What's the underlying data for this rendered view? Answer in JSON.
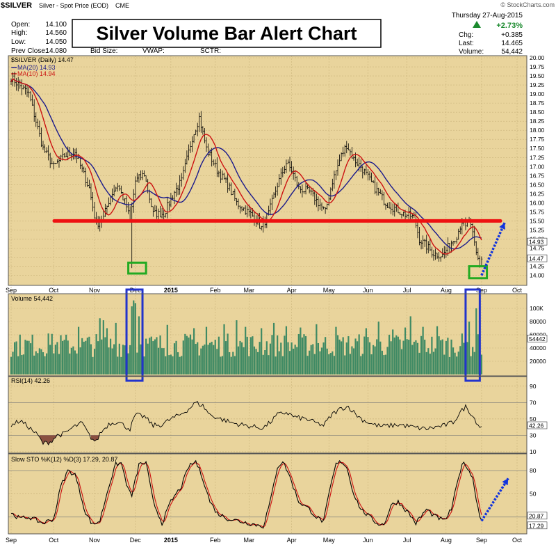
{
  "header": {
    "symbol": "$SILVER",
    "name": "Silver - Spot Price (EOD)",
    "exchange": "CME",
    "date": "Thursday  27-Aug-2015",
    "watermark": "© StockCharts.com",
    "open_label": "Open:",
    "open": "14.100",
    "high_label": "High:",
    "high": "14.560",
    "low_label": "Low:",
    "low": "14.050",
    "prev_label": "Prev Close:",
    "prev": "14.080",
    "bid_label": "Bid Size:",
    "vwap_label": "VWAP:",
    "sctr_label": "SCTR:",
    "change_pct": "+2.73%",
    "chg_label": "Chg:",
    "chg": "+0.385",
    "last_label": "Last:",
    "last": "14.465",
    "volume_label": "Volume:",
    "volume": "54,442"
  },
  "chart_data": [
    {
      "type": "ohlc",
      "title": "Silver Volume Bar Alert Chart",
      "legend": [
        "$SILVER (Daily) 14.47",
        "MA(20) 14.93",
        "MA(10) 14.94"
      ],
      "series_colors": {
        "price": "#000000",
        "ma20": "#1a1a8c",
        "ma10": "#cc1111"
      },
      "ylim": [
        13.8,
        20.0
      ],
      "yticks": [
        "20.00",
        "19.75",
        "19.50",
        "19.25",
        "19.00",
        "18.75",
        "18.50",
        "18.25",
        "18.00",
        "17.75",
        "17.50",
        "17.25",
        "17.00",
        "16.75",
        "16.50",
        "16.25",
        "16.00",
        "15.75",
        "15.50",
        "15.25",
        "15.00",
        "14.75",
        "14.50",
        "14.25",
        "14.00"
      ],
      "ytick_values": [
        20.0,
        19.75,
        19.5,
        19.25,
        19.0,
        18.75,
        18.5,
        18.25,
        18.0,
        17.75,
        17.5,
        17.25,
        17.0,
        16.75,
        16.5,
        16.25,
        16.0,
        15.75,
        15.5,
        15.25,
        15.0,
        14.75,
        14.5,
        14.25,
        14.0
      ],
      "x_months": [
        "Sep",
        "Oct",
        "Nov",
        "Dec",
        "2015",
        "Feb",
        "Mar",
        "Apr",
        "May",
        "Jun",
        "Jul",
        "Aug",
        "Sep",
        "Oct"
      ],
      "x_month_idx": [
        0,
        24,
        47,
        70,
        90,
        115,
        134,
        158,
        179,
        201,
        223,
        245,
        265,
        285
      ],
      "close_keypoints": [
        [
          0,
          19.45
        ],
        [
          10,
          19.0
        ],
        [
          18,
          17.5
        ],
        [
          24,
          17.0
        ],
        [
          30,
          17.3
        ],
        [
          36,
          17.4
        ],
        [
          44,
          16.4
        ],
        [
          48,
          15.4
        ],
        [
          52,
          15.6
        ],
        [
          56,
          16.2
        ],
        [
          60,
          16.5
        ],
        [
          65,
          15.9
        ],
        [
          67,
          15.5
        ],
        [
          70,
          16.6
        ],
        [
          75,
          16.8
        ],
        [
          80,
          15.7
        ],
        [
          86,
          15.7
        ],
        [
          92,
          16.3
        ],
        [
          96,
          16.6
        ],
        [
          102,
          17.8
        ],
        [
          106,
          18.35
        ],
        [
          110,
          17.5
        ],
        [
          116,
          16.9
        ],
        [
          122,
          16.5
        ],
        [
          127,
          16.0
        ],
        [
          132,
          15.8
        ],
        [
          137,
          15.6
        ],
        [
          141,
          15.3
        ],
        [
          145,
          15.7
        ],
        [
          150,
          16.5
        ],
        [
          155,
          17.1
        ],
        [
          158,
          16.9
        ],
        [
          162,
          16.4
        ],
        [
          168,
          16.3
        ],
        [
          173,
          16.0
        ],
        [
          177,
          15.75
        ],
        [
          181,
          16.6
        ],
        [
          186,
          17.3
        ],
        [
          189,
          17.6
        ],
        [
          193,
          17.2
        ],
        [
          197,
          17.0
        ],
        [
          201,
          16.7
        ],
        [
          205,
          16.4
        ],
        [
          211,
          16.0
        ],
        [
          216,
          15.85
        ],
        [
          221,
          15.7
        ],
        [
          227,
          15.6
        ],
        [
          230,
          15.0
        ],
        [
          234,
          14.8
        ],
        [
          238,
          14.6
        ],
        [
          243,
          14.55
        ],
        [
          247,
          14.85
        ],
        [
          251,
          15.1
        ],
        [
          254,
          15.5
        ],
        [
          256,
          15.3
        ],
        [
          258,
          15.55
        ],
        [
          260,
          15.1
        ],
        [
          262,
          14.6
        ],
        [
          264,
          14.3
        ],
        [
          265,
          14.47
        ]
      ],
      "support_line": {
        "value": 15.5,
        "color": "#ee1111"
      },
      "alert_boxes": [
        {
          "from": 66,
          "to": 76,
          "ylim": [
            14.05,
            14.35
          ],
          "color": "#22aa22"
        },
        {
          "from": 258,
          "to": 268,
          "ylim": [
            13.92,
            14.25
          ],
          "color": "#22aa22"
        }
      ],
      "projection_arrow": {
        "from": [
          265,
          14.0
        ],
        "to": [
          278,
          15.45
        ],
        "color": "#1133dd"
      }
    },
    {
      "type": "bar",
      "title": "Volume 54,442",
      "series_colors": {
        "bars": "#3f8a64"
      },
      "ylim": [
        0,
        120000
      ],
      "yticks": [
        "100K",
        "80000",
        "60000",
        "40000",
        "20000"
      ],
      "ytick_values": [
        100000,
        80000,
        60000,
        40000,
        20000
      ],
      "last_value_label": "54442",
      "base_volume": 48000,
      "spikes": [
        [
          21,
          62000
        ],
        [
          38,
          72000
        ],
        [
          50,
          85000
        ],
        [
          52,
          82000
        ],
        [
          54,
          70000
        ],
        [
          59,
          78000
        ],
        [
          68,
          103000
        ],
        [
          69,
          112000
        ],
        [
          70,
          108000
        ],
        [
          72,
          88000
        ],
        [
          88,
          75000
        ],
        [
          103,
          70000
        ],
        [
          110,
          72000
        ],
        [
          120,
          76000
        ],
        [
          127,
          82000
        ],
        [
          132,
          72000
        ],
        [
          141,
          70000
        ],
        [
          148,
          78000
        ],
        [
          155,
          73000
        ],
        [
          163,
          71000
        ],
        [
          172,
          76000
        ],
        [
          183,
          72000
        ],
        [
          200,
          70000
        ],
        [
          207,
          80000
        ],
        [
          215,
          68000
        ],
        [
          222,
          71000
        ],
        [
          225,
          88000
        ],
        [
          232,
          72000
        ],
        [
          240,
          73000
        ],
        [
          256,
          70000
        ],
        [
          258,
          80000
        ],
        [
          262,
          100000
        ],
        [
          264,
          78000
        ]
      ],
      "alert_boxes": [
        {
          "from": 65,
          "to": 74,
          "color": "#2233cc"
        },
        {
          "from": 256,
          "to": 264,
          "color": "#2233cc"
        }
      ]
    },
    {
      "type": "line",
      "title": "RSI(14) 42.26",
      "series_colors": {
        "line": "#000000",
        "oversold_fill": "#8a5040"
      },
      "ylim": [
        10,
        100
      ],
      "yticks": [
        "90",
        "70",
        "50",
        "30",
        "10"
      ],
      "ytick_values": [
        90,
        70,
        50,
        30,
        10
      ],
      "last_value_label": "42.26",
      "rsi_keypoints": [
        [
          0,
          42
        ],
        [
          5,
          48
        ],
        [
          10,
          40
        ],
        [
          15,
          30
        ],
        [
          18,
          20
        ],
        [
          22,
          22
        ],
        [
          26,
          30
        ],
        [
          30,
          32
        ],
        [
          35,
          40
        ],
        [
          40,
          45
        ],
        [
          44,
          30
        ],
        [
          46,
          25
        ],
        [
          48,
          22
        ],
        [
          50,
          32
        ],
        [
          55,
          44
        ],
        [
          60,
          47
        ],
        [
          65,
          40
        ],
        [
          67,
          38
        ],
        [
          70,
          55
        ],
        [
          75,
          53
        ],
        [
          80,
          42
        ],
        [
          85,
          43
        ],
        [
          90,
          50
        ],
        [
          95,
          55
        ],
        [
          100,
          62
        ],
        [
          104,
          70
        ],
        [
          108,
          66
        ],
        [
          112,
          55
        ],
        [
          118,
          50
        ],
        [
          125,
          45
        ],
        [
          132,
          42
        ],
        [
          138,
          40
        ],
        [
          142,
          39
        ],
        [
          146,
          46
        ],
        [
          150,
          55
        ],
        [
          155,
          58
        ],
        [
          160,
          52
        ],
        [
          166,
          50
        ],
        [
          172,
          45
        ],
        [
          176,
          42
        ],
        [
          181,
          56
        ],
        [
          186,
          63
        ],
        [
          190,
          65
        ],
        [
          194,
          56
        ],
        [
          198,
          49
        ],
        [
          203,
          44
        ],
        [
          208,
          41
        ],
        [
          214,
          42
        ],
        [
          219,
          43
        ],
        [
          224,
          41
        ],
        [
          229,
          39
        ],
        [
          234,
          38
        ],
        [
          239,
          40
        ],
        [
          244,
          42
        ],
        [
          249,
          46
        ],
        [
          253,
          58
        ],
        [
          256,
          65
        ],
        [
          259,
          57
        ],
        [
          262,
          47
        ],
        [
          264,
          40
        ],
        [
          265,
          42
        ]
      ]
    },
    {
      "type": "line",
      "title": "Slow STO %K(12) %D(3) 17.29, 20.87",
      "series_colors": {
        "k": "#000000",
        "d": "#cc1111"
      },
      "ylim": [
        0,
        100
      ],
      "yticks": [
        "80",
        "50",
        "20"
      ],
      "ytick_values": [
        80,
        50,
        20
      ],
      "last_value_labels": [
        "20.87",
        "17.29"
      ],
      "sto_keypoints": [
        [
          0,
          25
        ],
        [
          5,
          18
        ],
        [
          10,
          20
        ],
        [
          18,
          12
        ],
        [
          24,
          18
        ],
        [
          28,
          60
        ],
        [
          32,
          80
        ],
        [
          36,
          75
        ],
        [
          42,
          25
        ],
        [
          46,
          10
        ],
        [
          50,
          15
        ],
        [
          55,
          60
        ],
        [
          59,
          88
        ],
        [
          62,
          90
        ],
        [
          66,
          55
        ],
        [
          68,
          48
        ],
        [
          72,
          88
        ],
        [
          76,
          90
        ],
        [
          80,
          40
        ],
        [
          85,
          12
        ],
        [
          90,
          40
        ],
        [
          96,
          60
        ],
        [
          100,
          85
        ],
        [
          104,
          92
        ],
        [
          108,
          70
        ],
        [
          112,
          40
        ],
        [
          116,
          25
        ],
        [
          122,
          18
        ],
        [
          128,
          15
        ],
        [
          134,
          12
        ],
        [
          138,
          10
        ],
        [
          142,
          8
        ],
        [
          146,
          40
        ],
        [
          150,
          85
        ],
        [
          153,
          92
        ],
        [
          156,
          78
        ],
        [
          162,
          40
        ],
        [
          168,
          30
        ],
        [
          172,
          20
        ],
        [
          176,
          14
        ],
        [
          180,
          60
        ],
        [
          183,
          88
        ],
        [
          186,
          92
        ],
        [
          189,
          85
        ],
        [
          193,
          50
        ],
        [
          197,
          30
        ],
        [
          202,
          20
        ],
        [
          206,
          12
        ],
        [
          210,
          10
        ],
        [
          214,
          35
        ],
        [
          218,
          40
        ],
        [
          224,
          25
        ],
        [
          228,
          12
        ],
        [
          234,
          30
        ],
        [
          238,
          22
        ],
        [
          244,
          15
        ],
        [
          248,
          30
        ],
        [
          252,
          70
        ],
        [
          254,
          90
        ],
        [
          257,
          85
        ],
        [
          260,
          70
        ],
        [
          262,
          45
        ],
        [
          264,
          20
        ],
        [
          265,
          17
        ]
      ],
      "projection_arrow": {
        "from": [
          265,
          15
        ],
        "to": [
          280,
          70
        ],
        "color": "#1133dd"
      }
    }
  ]
}
